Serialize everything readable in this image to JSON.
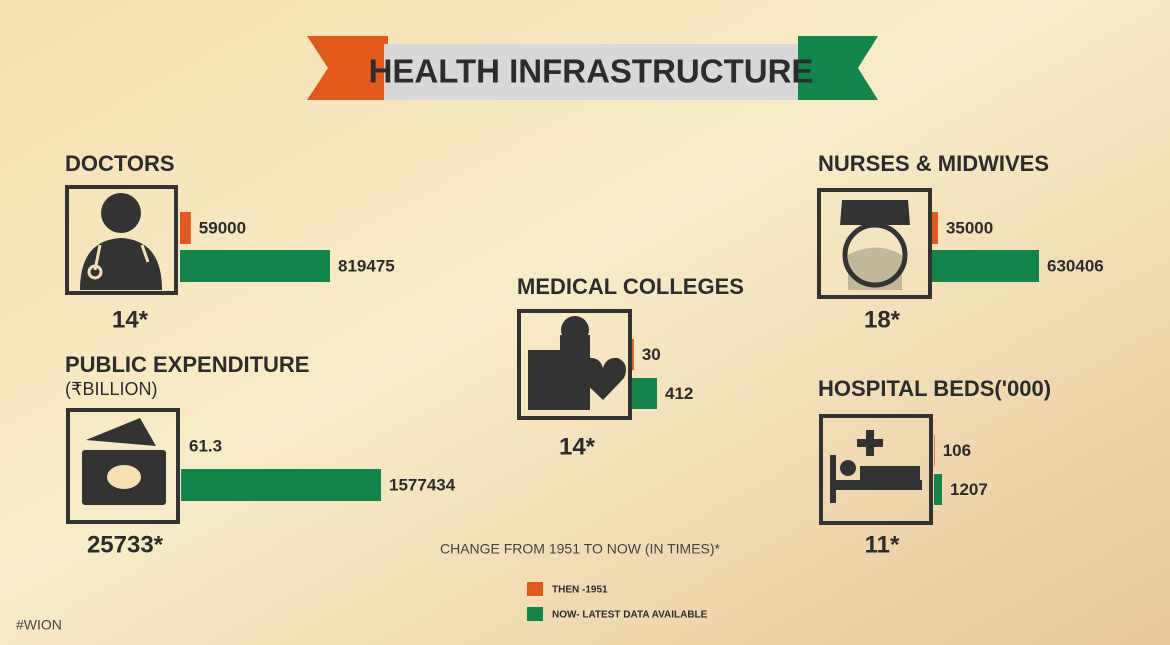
{
  "title": "HEALTH  INFRASTRUCTURE",
  "note": "CHANGE FROM 1951 TO NOW (IN TIMES)*",
  "source": "#WION",
  "legend": [
    {
      "name": "THEN -1951",
      "color": "#e2591b"
    },
    {
      "name": "NOW- LATEST DATA AVAILABLE",
      "color": "#12854a"
    }
  ],
  "chart_data": [
    {
      "type": "bar",
      "title": "DOCTORS",
      "values": [
        59000,
        819475
      ],
      "annotation": "14*"
    },
    {
      "type": "bar",
      "title": "PUBLIC EXPENDITURE",
      "subtitle": "(₹BILLION)",
      "values": [
        61.3,
        1577434
      ],
      "annotation": "25733*"
    },
    {
      "type": "bar",
      "title": "MEDICAL COLLEGES",
      "values": [
        30,
        412
      ],
      "annotation": "14*"
    },
    {
      "type": "bar",
      "title": "NURSES & MIDWIVES",
      "values": [
        35000,
        630406
      ],
      "annotation": "18*"
    },
    {
      "type": "bar",
      "title": "HOSPITAL BEDS('000)",
      "values": [
        106,
        1207
      ],
      "annotation": "11*"
    }
  ]
}
